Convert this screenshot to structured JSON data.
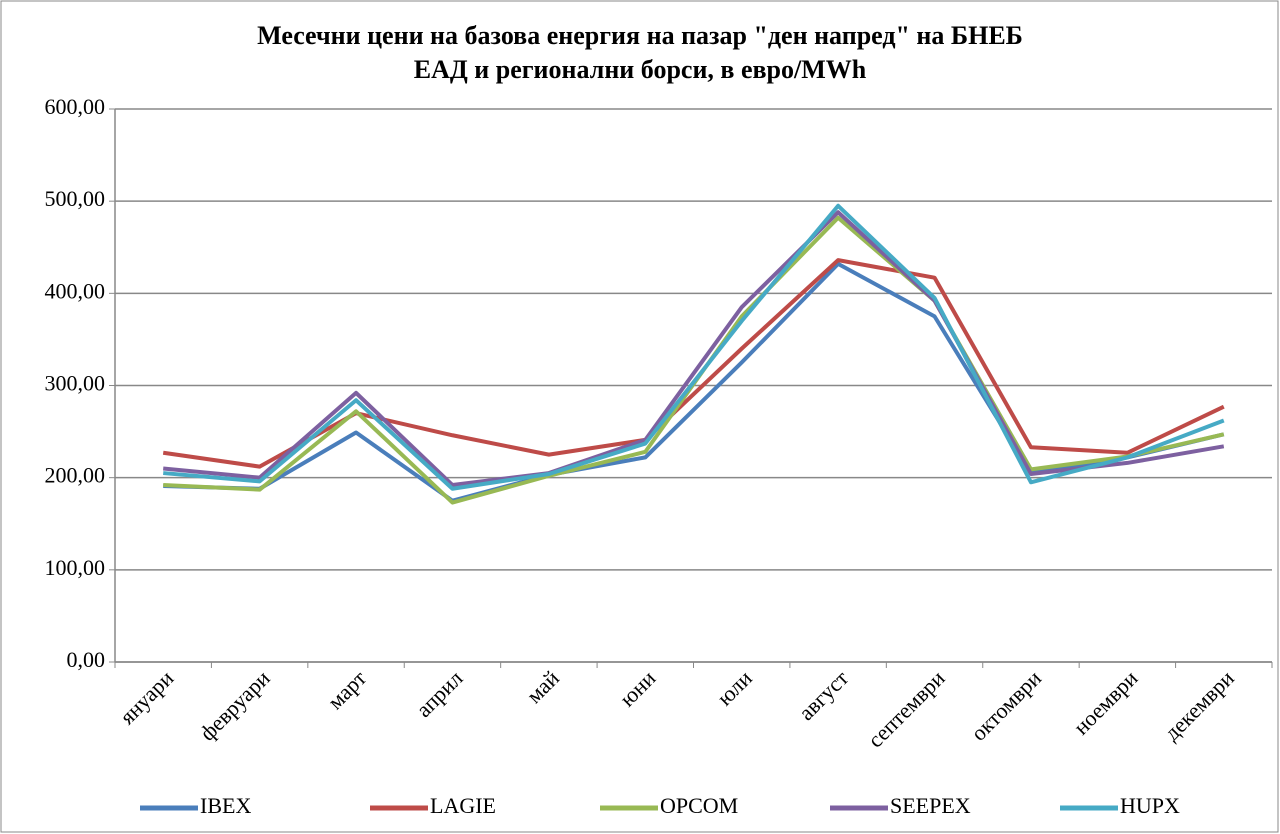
{
  "chart_data": {
    "type": "line",
    "title": [
      "Месечни цени на базова енергия на пазар \"ден напред\" на БНЕБ",
      "ЕАД и регионални борси, в евро/MWh"
    ],
    "categories": [
      "януари",
      "февруари",
      "март",
      "април",
      "май",
      "юни",
      "юли",
      "август",
      "септември",
      "октомври",
      "ноември",
      "декември"
    ],
    "series": [
      {
        "name": "IBEX",
        "color": "#4a7ebb",
        "values": [
          191,
          188,
          249,
          175,
          203,
          222,
          325,
          432,
          375,
          205,
          222,
          247
        ]
      },
      {
        "name": "LAGIE",
        "color": "#be4b48",
        "values": [
          227,
          212,
          270,
          246,
          225,
          241,
          340,
          436,
          417,
          233,
          227,
          277
        ]
      },
      {
        "name": "OPCOM",
        "color": "#98b954",
        "values": [
          192,
          187,
          272,
          173,
          202,
          228,
          375,
          482,
          392,
          209,
          223,
          247
        ]
      },
      {
        "name": "SEEPEX",
        "color": "#7d60a0",
        "values": [
          210,
          200,
          292,
          192,
          205,
          241,
          385,
          488,
          392,
          204,
          216,
          234
        ]
      },
      {
        "name": "HUPX",
        "color": "#46aac5",
        "values": [
          205,
          196,
          284,
          188,
          204,
          237,
          370,
          495,
          395,
          195,
          222,
          262
        ]
      }
    ],
    "ylim": [
      0,
      600
    ],
    "yticks": [
      {
        "value": 0,
        "label": "0,00"
      },
      {
        "value": 100,
        "label": "100,00"
      },
      {
        "value": 200,
        "label": "200,00"
      },
      {
        "value": 300,
        "label": "300,00"
      },
      {
        "value": 400,
        "label": "400,00"
      },
      {
        "value": 500,
        "label": "500,00"
      },
      {
        "value": 600,
        "label": "600,00"
      }
    ],
    "grid": true,
    "legend": "bottom"
  }
}
